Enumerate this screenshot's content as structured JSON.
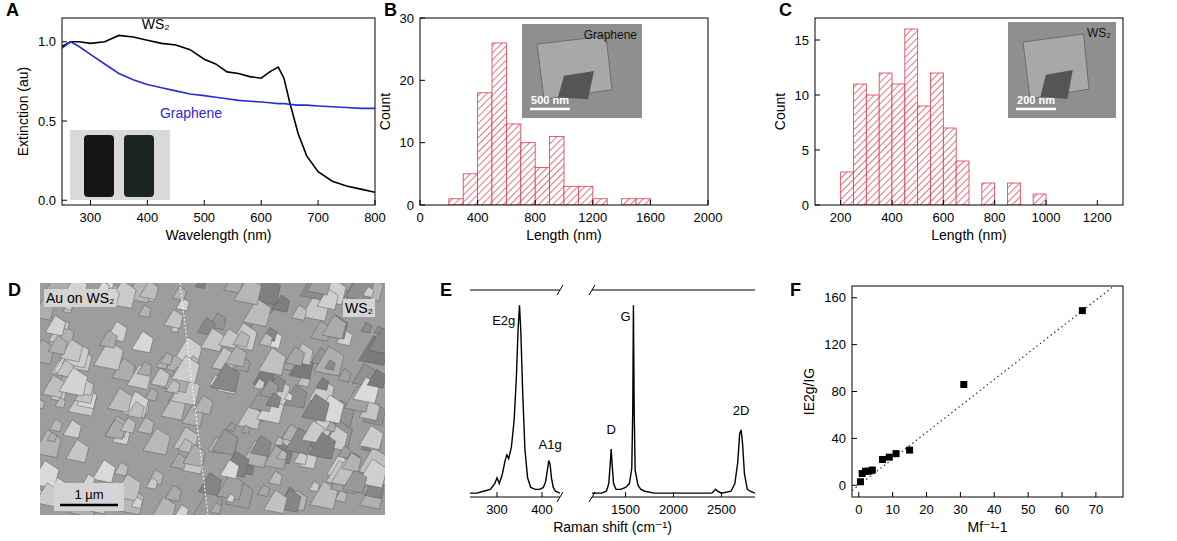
{
  "chart_data": [
    {
      "panel": "A",
      "type": "line",
      "xlabel": "Wavelength (nm)",
      "ylabel": "Extinction (au)",
      "xlim": [
        250,
        800
      ],
      "ylim": [
        -0.03,
        1.15
      ],
      "xticks": [
        300,
        400,
        500,
        600,
        700,
        800
      ],
      "yticks": [
        {
          "value": 0,
          "label": "0.0"
        },
        {
          "value": 0.5,
          "label": "0.5"
        },
        {
          "value": 1,
          "label": "1.0"
        }
      ],
      "x": [
        250,
        265,
        280,
        300,
        325,
        350,
        375,
        400,
        425,
        450,
        475,
        500,
        520,
        540,
        560,
        580,
        600,
        615,
        630,
        640,
        650,
        665,
        680,
        700,
        725,
        750,
        775,
        800
      ],
      "series": [
        {
          "name": "WS₂",
          "color": "#000000",
          "label_at": {
            "x": 390,
            "y": 1.08
          },
          "values": [
            0.97,
            1.0,
            1.0,
            0.99,
            1.0,
            1.04,
            1.03,
            1.01,
            0.99,
            0.98,
            0.95,
            0.89,
            0.86,
            0.81,
            0.8,
            0.78,
            0.77,
            0.81,
            0.84,
            0.77,
            0.62,
            0.42,
            0.28,
            0.18,
            0.12,
            0.09,
            0.07,
            0.05
          ]
        },
        {
          "name": "Graphene",
          "color": "#2a2ad8",
          "label_at": {
            "x": 422,
            "y": 0.52
          },
          "values": [
            0.96,
            1.0,
            0.97,
            0.92,
            0.86,
            0.8,
            0.76,
            0.73,
            0.71,
            0.69,
            0.67,
            0.66,
            0.65,
            0.64,
            0.63,
            0.625,
            0.62,
            0.615,
            0.61,
            0.61,
            0.605,
            0.6,
            0.6,
            0.595,
            0.59,
            0.585,
            0.58,
            0.58
          ]
        }
      ]
    },
    {
      "panel": "B",
      "type": "histogram",
      "xlabel": "Length (nm)",
      "ylabel": "Count",
      "color": "#e0384f",
      "bins": [
        200,
        300,
        400,
        500,
        600,
        700,
        800,
        900,
        1000,
        1100,
        1200,
        1300,
        1400,
        1500,
        1600
      ],
      "counts": [
        1,
        5,
        18,
        26,
        13,
        10,
        6,
        11,
        3,
        3,
        1,
        0,
        1,
        1
      ],
      "xlim": [
        0,
        2000
      ],
      "ylim": [
        0,
        30
      ],
      "xticks": [
        0,
        400,
        800,
        1200,
        1600,
        2000
      ],
      "yticks": [
        0,
        10,
        20,
        30
      ],
      "inset": {
        "label": "Graphene",
        "scale_bar": "500 nm"
      }
    },
    {
      "panel": "C",
      "type": "histogram",
      "xlabel": "Length (nm)",
      "ylabel": "Count",
      "color": "#e0384f",
      "bins": [
        200,
        250,
        300,
        350,
        400,
        450,
        500,
        550,
        600,
        650,
        700,
        750,
        800,
        850,
        900,
        950,
        1000
      ],
      "counts": [
        3,
        11,
        10,
        12,
        11,
        16,
        9,
        12,
        7,
        4,
        0,
        2,
        0,
        2,
        0,
        1
      ],
      "xlim": [
        100,
        1300
      ],
      "ylim": [
        0,
        17
      ],
      "xticks": [
        200,
        400,
        600,
        800,
        1000,
        1200
      ],
      "yticks": [
        0,
        5,
        10,
        15
      ],
      "inset": {
        "label": "WS₂",
        "scale_bar": "200 nm"
      }
    },
    {
      "panel": "D",
      "type": "image",
      "labels": [
        "Au on WS₂",
        "WS₂"
      ],
      "scale_bar": "1 µm"
    },
    {
      "panel": "E",
      "type": "line",
      "xlabel": "Raman shift (cm⁻¹)",
      "tick_labels": "x",
      "color": "#000000",
      "ylim": [
        0,
        1.08
      ],
      "segments": [
        {
          "xlim": [
            240,
            440
          ],
          "xticks": [
            300,
            400
          ],
          "x": [
            240,
            255,
            270,
            285,
            295,
            300,
            305,
            312,
            318,
            322,
            326,
            332,
            338,
            343,
            347,
            350,
            353,
            357,
            362,
            368,
            375,
            385,
            395,
            403,
            408,
            412,
            415,
            418,
            421,
            425,
            430,
            440
          ],
          "values": [
            0.02,
            0.02,
            0.03,
            0.04,
            0.07,
            0.1,
            0.07,
            0.12,
            0.19,
            0.22,
            0.2,
            0.26,
            0.4,
            0.62,
            0.88,
            1.0,
            0.86,
            0.55,
            0.25,
            0.1,
            0.05,
            0.04,
            0.04,
            0.05,
            0.08,
            0.14,
            0.19,
            0.17,
            0.1,
            0.05,
            0.03,
            0.02
          ]
        },
        {
          "xlim": [
            1150,
            2850
          ],
          "xticks": [
            1500,
            2000,
            2500
          ],
          "x": [
            1150,
            1250,
            1300,
            1325,
            1340,
            1350,
            1360,
            1375,
            1400,
            1450,
            1500,
            1540,
            1565,
            1575,
            1582,
            1590,
            1600,
            1615,
            1630,
            1660,
            1700,
            1800,
            2000,
            2200,
            2400,
            2440,
            2460,
            2500,
            2600,
            2640,
            2670,
            2690,
            2705,
            2720,
            2740,
            2770,
            2800,
            2850
          ],
          "values": [
            0.02,
            0.02,
            0.03,
            0.07,
            0.17,
            0.25,
            0.17,
            0.07,
            0.04,
            0.04,
            0.05,
            0.07,
            0.15,
            0.45,
            1.0,
            0.45,
            0.14,
            0.1,
            0.06,
            0.04,
            0.03,
            0.02,
            0.02,
            0.02,
            0.02,
            0.04,
            0.03,
            0.02,
            0.03,
            0.07,
            0.18,
            0.33,
            0.35,
            0.28,
            0.12,
            0.04,
            0.03,
            0.02
          ]
        }
      ],
      "peaks": [
        {
          "text": "E2g",
          "x": 315,
          "y": 0.9
        },
        {
          "text": "A1g",
          "x": 418,
          "y": 0.25
        },
        {
          "text": "D",
          "x": 1350,
          "y": 0.33
        },
        {
          "text": "G",
          "x": 1500,
          "y": 0.92
        },
        {
          "text": "2D",
          "x": 2705,
          "y": 0.43
        }
      ]
    },
    {
      "panel": "F",
      "type": "scatter",
      "xlabel": "Mf⁻¹-1",
      "ylabel": "IE2g/IG",
      "color": "#000000",
      "marker": "square",
      "x": [
        0.5,
        1,
        2,
        3,
        4,
        7,
        9,
        11,
        15,
        31,
        66
      ],
      "values": [
        3,
        10,
        12,
        12,
        13,
        22,
        24,
        27,
        30,
        86,
        149
      ],
      "xlim": [
        -2,
        78
      ],
      "ylim": [
        -10,
        170
      ],
      "xticks": [
        0,
        10,
        20,
        30,
        40,
        50,
        60,
        70
      ],
      "yticks": [
        0,
        40,
        80,
        120,
        160
      ],
      "fit": {
        "x": [
          -2,
          78
        ],
        "y": [
          -4.5,
          176
        ],
        "line_style": "dotted"
      }
    }
  ]
}
